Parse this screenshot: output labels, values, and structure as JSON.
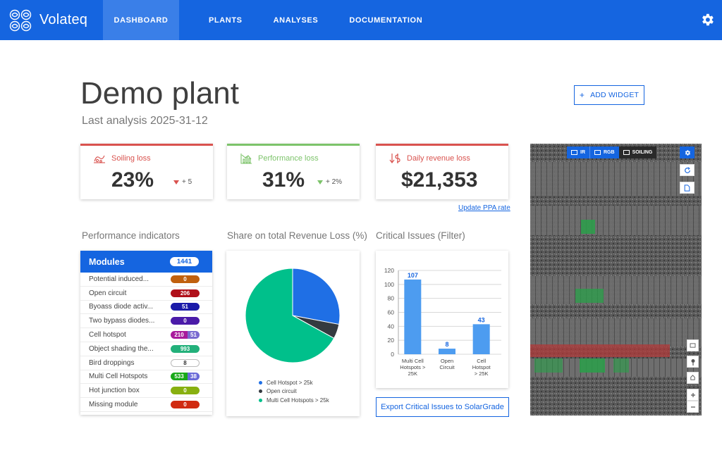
{
  "app": {
    "brand": "Volateq"
  },
  "nav": {
    "items": [
      {
        "label": "DASHBOARD",
        "active": true
      },
      {
        "label": "PLANTS",
        "active": false
      },
      {
        "label": "ANALYSES",
        "active": false
      },
      {
        "label": "DOCUMENTATION",
        "active": false
      }
    ]
  },
  "header": {
    "title": "Demo plant",
    "subtitle": "Last analysis 2025-31-12",
    "add_widget_label": "ADD WIDGET",
    "add_widget_icon": "+"
  },
  "kpis": [
    {
      "label": "Soiling loss",
      "value": "23%",
      "delta": "+ 5",
      "color": "#d9534f",
      "delta_color": "#d9534f"
    },
    {
      "label": "Performance loss",
      "value": "31%",
      "delta": "+ 2%",
      "color": "#7cc36a",
      "delta_color": "#7cc36a"
    },
    {
      "label": "Daily revenue loss",
      "value": "$21,353",
      "delta": "",
      "color": "#d9534f"
    }
  ],
  "update_ppa_label": "Update PPA rate",
  "sections": {
    "performance": "Performance indicators",
    "share": "Share on total Revenue Loss (%)",
    "critical": "Critical Issues (Filter)"
  },
  "modules": {
    "title": "Modules",
    "count": "1441",
    "rows": [
      {
        "label": "Potential induced...",
        "value": "0",
        "color": "#c0600e"
      },
      {
        "label": "Open circuit",
        "value": "206",
        "color": "#b0101a"
      },
      {
        "label": "Byoass diode activ...",
        "value": "51",
        "color": "#1a1aa8"
      },
      {
        "label": "Two bypass diodes...",
        "value": "0",
        "color": "#4a1aa8"
      },
      {
        "label": "Cell hotspot",
        "split": [
          "210",
          "51"
        ],
        "colors": [
          "#a81a9c",
          "#7a6ad0"
        ]
      },
      {
        "label": "Object shading the...",
        "value": "993",
        "color": "#22b07a"
      },
      {
        "label": "Bird droppings",
        "value": "8",
        "color": "#ffffff",
        "text_color": "#333",
        "outline": true
      },
      {
        "label": "Multi Cell Hotspots",
        "split": [
          "533",
          "38"
        ],
        "colors": [
          "#18a818",
          "#6a6ad8"
        ]
      },
      {
        "label": "Hot junction box",
        "value": "0",
        "color": "#88b010"
      },
      {
        "label": "Missing module",
        "value": "0",
        "color": "#d02a10"
      }
    ]
  },
  "pie": {
    "legend": [
      {
        "label": "Cell Hotspot > 25k",
        "color": "#1f6fe5"
      },
      {
        "label": "Open circuit",
        "color": "#343a40"
      },
      {
        "label": "Multi Cell Hotspots > 25k",
        "color": "#00c08b"
      }
    ]
  },
  "chart_data": [
    {
      "type": "pie",
      "title": "Share on total Revenue Loss (%)",
      "labels": [
        "Cell Hotspot > 25k",
        "Open circuit",
        "Multi Cell Hotspots > 25k"
      ],
      "values": [
        28,
        5,
        67
      ],
      "colors": [
        "#1f6fe5",
        "#343a40",
        "#00c08b"
      ]
    },
    {
      "type": "bar",
      "title": "Critical Issues (Filter)",
      "categories": [
        "Multi Cell Hotspots > 25K",
        "Open Circuit",
        "Cell Hotspot > 25K"
      ],
      "category_lines": [
        [
          "Multi Cell",
          "Hotspots >",
          "25K"
        ],
        [
          "Open",
          "Circuit"
        ],
        [
          "Cell",
          "Hotspot",
          "> 25K"
        ]
      ],
      "values": [
        107,
        8,
        43
      ],
      "ylim": [
        0,
        120
      ],
      "yticks": [
        0,
        20,
        40,
        60,
        80,
        100,
        120
      ],
      "grid": true,
      "bar_color": "#4d9cf0"
    }
  ],
  "export_label": "Export Critical Issues to SolarGrade",
  "map": {
    "tabs": [
      {
        "label": "IR",
        "active": true
      },
      {
        "label": "RGB",
        "active": false
      },
      {
        "label": "SOILING",
        "active": false
      }
    ]
  }
}
